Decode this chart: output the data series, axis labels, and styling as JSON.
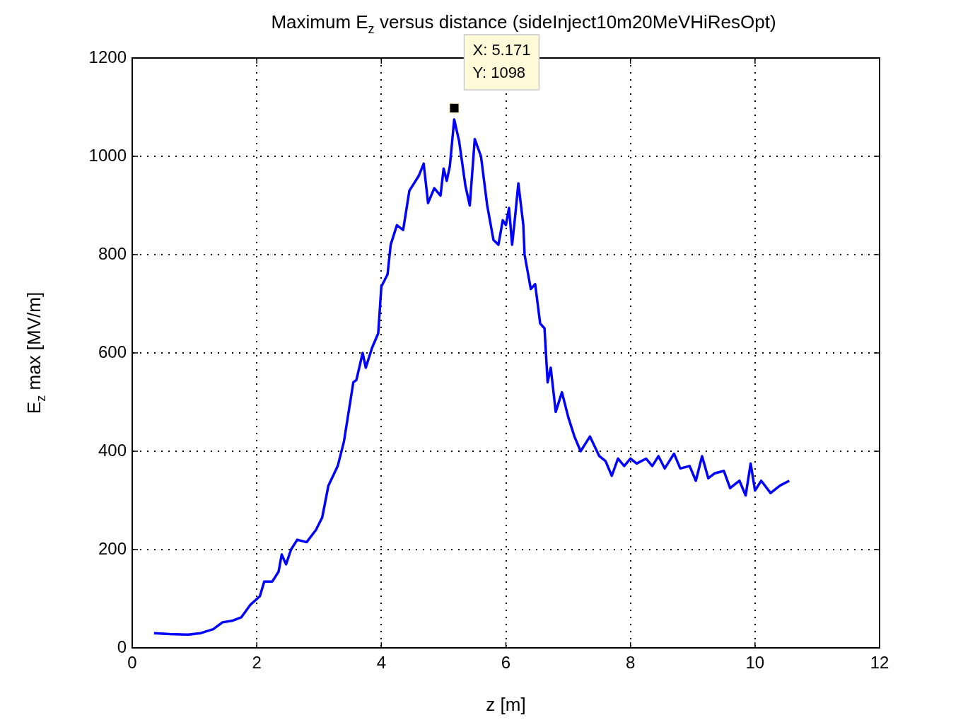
{
  "chart_data": {
    "type": "line",
    "title": "Maximum E$_{z}$ versus distance (sideInject10m20MeVHiResOpt)",
    "xlabel": "z [m]",
    "ylabel": "E$_{z}$ max [MV/m]",
    "xlim": [
      0,
      12
    ],
    "xticks": [
      0,
      2,
      4,
      6,
      8,
      10,
      12
    ],
    "ylim": [
      0,
      1200
    ],
    "yticks": [
      0,
      200,
      400,
      600,
      800,
      1000,
      1200
    ],
    "grid": true,
    "legend": false,
    "marker": "none",
    "line_style": "solid",
    "series": [
      {
        "color": "#0000ff",
        "x": [
          0.35,
          0.6,
          0.9,
          1.1,
          1.3,
          1.45,
          1.6,
          1.75,
          1.9,
          2.05,
          2.12,
          2.25,
          2.35,
          2.4,
          2.47,
          2.55,
          2.65,
          2.8,
          2.95,
          3.05,
          3.15,
          3.3,
          3.4,
          3.5,
          3.55,
          3.6,
          3.7,
          3.75,
          3.85,
          3.95,
          4.0,
          4.1,
          4.15,
          4.25,
          4.35,
          4.45,
          4.6,
          4.68,
          4.75,
          4.85,
          4.95,
          5.0,
          5.05,
          5.1,
          5.17,
          5.25,
          5.35,
          5.42,
          5.5,
          5.6,
          5.7,
          5.8,
          5.88,
          5.95,
          6.0,
          6.05,
          6.1,
          6.15,
          6.2,
          6.28,
          6.3,
          6.4,
          6.47,
          6.55,
          6.62,
          6.67,
          6.72,
          6.8,
          6.9,
          7.0,
          7.1,
          7.2,
          7.35,
          7.5,
          7.6,
          7.7,
          7.8,
          7.9,
          8.0,
          8.1,
          8.25,
          8.35,
          8.45,
          8.55,
          8.7,
          8.8,
          8.95,
          9.05,
          9.15,
          9.25,
          9.35,
          9.5,
          9.6,
          9.75,
          9.85,
          9.93,
          10.0,
          10.1,
          10.25,
          10.4,
          10.55
        ],
        "values": [
          30,
          28,
          27,
          30,
          38,
          52,
          55,
          62,
          88,
          105,
          135,
          135,
          155,
          190,
          170,
          200,
          220,
          215,
          240,
          265,
          330,
          370,
          420,
          500,
          540,
          545,
          600,
          570,
          610,
          640,
          735,
          760,
          820,
          860,
          850,
          930,
          960,
          985,
          905,
          935,
          920,
          975,
          950,
          980,
          1075,
          1030,
          940,
          900,
          1035,
          1000,
          900,
          830,
          820,
          870,
          860,
          895,
          820,
          880,
          945,
          860,
          800,
          730,
          740,
          660,
          650,
          540,
          570,
          480,
          520,
          470,
          430,
          400,
          430,
          390,
          380,
          350,
          385,
          370,
          385,
          375,
          385,
          370,
          390,
          365,
          395,
          365,
          370,
          340,
          390,
          345,
          355,
          360,
          325,
          340,
          310,
          375,
          320,
          340,
          315,
          330,
          340
        ]
      },
      {
        "type": "scatter",
        "color": "#000000",
        "marker": "square",
        "x": [
          5.171
        ],
        "values": [
          1098
        ]
      }
    ],
    "annotations": [
      "X: 5.171",
      "Y: 1098"
    ]
  }
}
